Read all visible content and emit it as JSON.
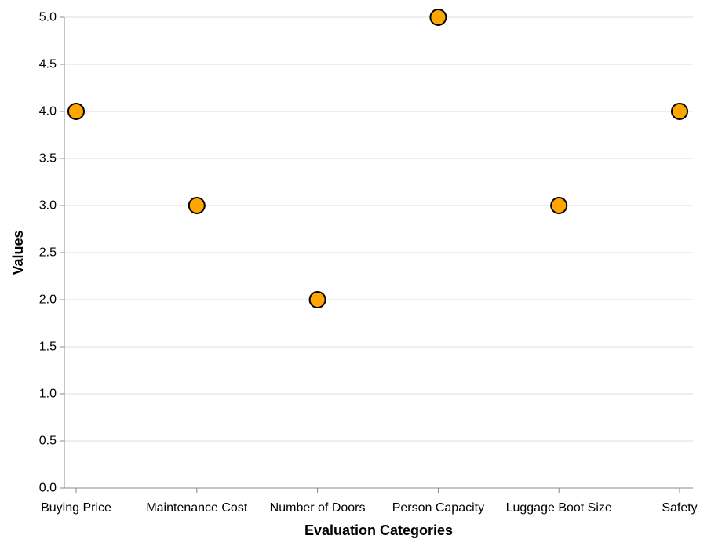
{
  "chart_data": {
    "type": "scatter",
    "title": "",
    "xlabel": "Evaluation Categories",
    "ylabel": "Values",
    "categories": [
      "Buying Price",
      "Maintenance Cost",
      "Number of Doors",
      "Person Capacity",
      "Luggage Boot Size",
      "Safety"
    ],
    "values": [
      4,
      3,
      2,
      5,
      3,
      4
    ],
    "ylim": [
      0,
      5
    ],
    "yticks": [
      "0.0",
      "0.5",
      "1.0",
      "1.5",
      "2.0",
      "2.5",
      "3.0",
      "3.5",
      "4.0",
      "4.5",
      "5.0"
    ],
    "grid": true,
    "point_color": "#ffa500",
    "point_stroke": "#000000"
  }
}
